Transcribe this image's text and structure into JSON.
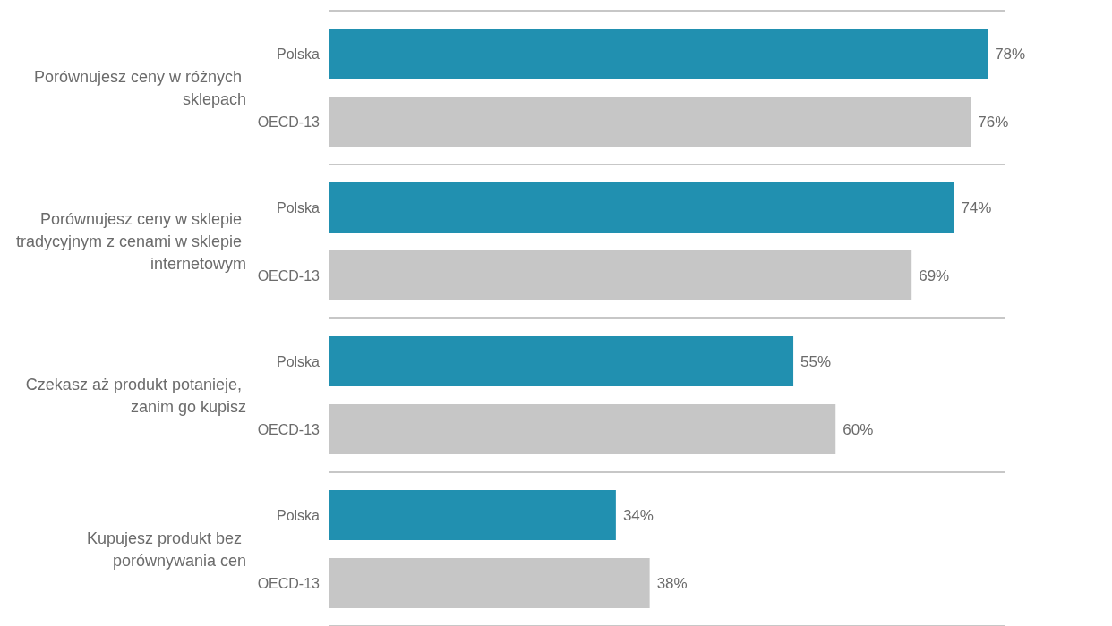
{
  "chart_data": {
    "type": "bar",
    "orientation": "horizontal",
    "categories": [
      "Porównujesz ceny w różnych sklepach",
      "Porównujesz ceny w sklepie tradycyjnym z cenami w sklepie internetowym",
      "Czekasz aż produkt potanieje, zanim go kupisz",
      "Kupujesz produkt bez porównywania cen"
    ],
    "series": [
      {
        "name": "Polska",
        "color": "#2190b0",
        "values": [
          78,
          74,
          55,
          34
        ],
        "value_labels": [
          "78%",
          "74%",
          "55%",
          "34%"
        ]
      },
      {
        "name": "OECD-13",
        "color": "#c6c6c6",
        "values": [
          76,
          69,
          60,
          38
        ],
        "value_labels": [
          "76%",
          "69%",
          "60%",
          "38%"
        ]
      }
    ],
    "grid": "y",
    "legend": false
  }
}
